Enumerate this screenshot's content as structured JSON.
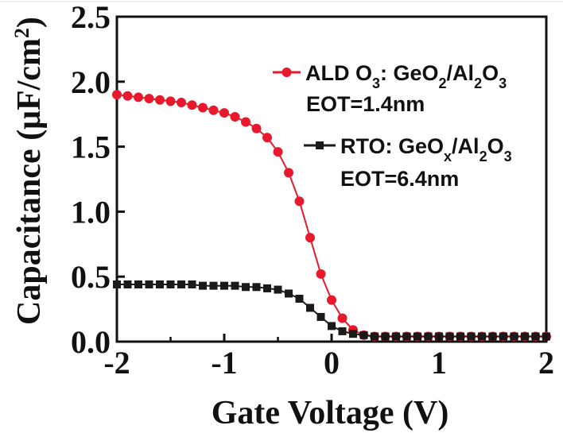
{
  "chart_data": {
    "type": "scatter",
    "xlabel": "Gate Voltage (V)",
    "ylabel": {
      "base": "Capacitance (μF/cm",
      "sup": "2",
      "end": ")"
    },
    "xlim": [
      -2,
      2
    ],
    "ylim": [
      0,
      2.5
    ],
    "xticks": [
      -2,
      -1,
      0,
      1,
      2
    ],
    "xtick_labels": [
      "-2",
      "-1",
      "0",
      "1",
      "2"
    ],
    "yticks": [
      0,
      0.5,
      1.0,
      1.5,
      2.0,
      2.5
    ],
    "ytick_labels": [
      "0.0",
      "0.5",
      "1.0",
      "1.5",
      "2.0",
      "2.5"
    ],
    "grid": false,
    "legend_position": "top-right",
    "series": [
      {
        "name": "ALD O3: GeO2/Al2O3",
        "legend_parts": [
          {
            "t": "ALD O"
          },
          {
            "t": "3",
            "sub": true
          },
          {
            "t": ": GeO"
          },
          {
            "t": "2",
            "sub": true
          },
          {
            "t": "/Al"
          },
          {
            "t": "2",
            "sub": true
          },
          {
            "t": "O"
          },
          {
            "t": "3",
            "sub": true
          }
        ],
        "note": "EOT=1.4nm",
        "color": "#e8192c",
        "marker": "circle",
        "x": [
          -2.0,
          -1.9,
          -1.8,
          -1.7,
          -1.6,
          -1.5,
          -1.4,
          -1.3,
          -1.2,
          -1.1,
          -1.0,
          -0.9,
          -0.8,
          -0.7,
          -0.6,
          -0.5,
          -0.4,
          -0.3,
          -0.2,
          -0.1,
          0.0,
          0.1,
          0.2,
          0.3,
          0.4,
          0.5,
          0.6,
          0.7,
          0.8,
          0.9,
          1.0,
          1.1,
          1.2,
          1.3,
          1.4,
          1.5,
          1.6,
          1.7,
          1.8,
          1.9,
          2.0
        ],
        "y": [
          1.9,
          1.89,
          1.88,
          1.87,
          1.86,
          1.85,
          1.84,
          1.82,
          1.8,
          1.78,
          1.76,
          1.73,
          1.69,
          1.64,
          1.57,
          1.46,
          1.3,
          1.08,
          0.8,
          0.52,
          0.32,
          0.18,
          0.09,
          0.05,
          0.04,
          0.04,
          0.04,
          0.04,
          0.04,
          0.04,
          0.04,
          0.04,
          0.04,
          0.04,
          0.04,
          0.04,
          0.04,
          0.04,
          0.04,
          0.04,
          0.04
        ]
      },
      {
        "name": "RTO: GeOx/Al2O3",
        "legend_parts": [
          {
            "t": "RTO: GeO"
          },
          {
            "t": "x",
            "sub": true
          },
          {
            "t": "/Al"
          },
          {
            "t": "2",
            "sub": true
          },
          {
            "t": "O"
          },
          {
            "t": "3",
            "sub": true
          }
        ],
        "note": "EOT=6.4nm",
        "color": "#1a1a1a",
        "marker": "square",
        "x": [
          -2.0,
          -1.9,
          -1.8,
          -1.7,
          -1.6,
          -1.5,
          -1.4,
          -1.3,
          -1.2,
          -1.1,
          -1.0,
          -0.9,
          -0.8,
          -0.7,
          -0.6,
          -0.5,
          -0.4,
          -0.3,
          -0.2,
          -0.1,
          0.0,
          0.1,
          0.2,
          0.3,
          0.4,
          0.5,
          0.6,
          0.7,
          0.8,
          0.9,
          1.0,
          1.1,
          1.2,
          1.3,
          1.4,
          1.5,
          1.6,
          1.7,
          1.8,
          1.9,
          2.0
        ],
        "y": [
          0.44,
          0.44,
          0.44,
          0.44,
          0.44,
          0.44,
          0.44,
          0.44,
          0.43,
          0.43,
          0.43,
          0.43,
          0.42,
          0.42,
          0.41,
          0.4,
          0.37,
          0.33,
          0.26,
          0.19,
          0.12,
          0.08,
          0.06,
          0.05,
          0.04,
          0.04,
          0.04,
          0.04,
          0.04,
          0.04,
          0.04,
          0.04,
          0.04,
          0.04,
          0.04,
          0.04,
          0.04,
          0.04,
          0.04,
          0.04,
          0.04
        ]
      }
    ]
  }
}
